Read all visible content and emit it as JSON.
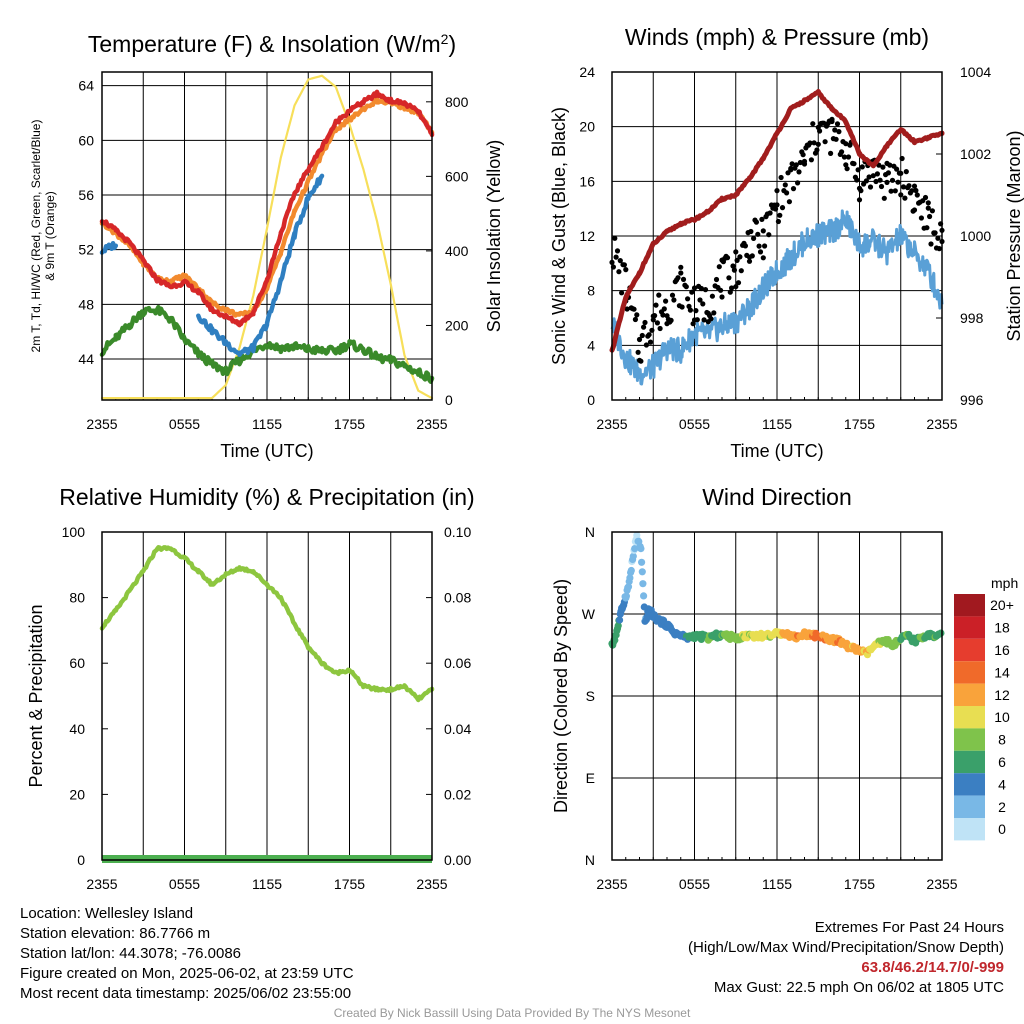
{
  "colors": {
    "temp": "#d62728",
    "dewpoint": "#3a8a2a",
    "heat_index": "#2f7fc1",
    "nine_m": "#f28a2e",
    "insolation": "#f7df5a",
    "wind": "#5aa0d6",
    "gust": "#000000",
    "pressure": "#a11d1d",
    "rh": "#8dc63f",
    "precip": "#4caf50"
  },
  "chart_data": [
    {
      "id": "temperature",
      "type": "line",
      "title": "Temperature (F) & Insolation (W/m",
      "title_superscript": "2",
      "title_suffix": ")",
      "ylabel_line1": "2m T, Td, HI/WC (Red, Green, Scarlet/Blue)",
      "ylabel_line2": "& 9m T (Orange)",
      "ylabel_right": "Solar Insolation (Yellow)",
      "xlabel": "Time (UTC)",
      "x_ticks": [
        "2355",
        "0555",
        "1155",
        "1755",
        "2355"
      ],
      "ylim": [
        41,
        65
      ],
      "y_ticks": [
        44,
        48,
        52,
        56,
        60,
        64
      ],
      "y2lim": [
        0,
        880
      ],
      "y2_ticks": [
        0,
        200,
        400,
        600,
        800
      ],
      "x_hours": [
        0,
        1,
        2,
        3,
        4,
        5,
        6,
        7,
        8,
        9,
        10,
        11,
        12,
        13,
        14,
        15,
        16,
        17,
        18,
        19,
        20,
        21,
        22,
        23,
        24
      ],
      "series": [
        {
          "key": "temp",
          "values": [
            54.2,
            53.4,
            52.5,
            51.2,
            49.8,
            49.3,
            49.6,
            48.9,
            47.6,
            47.1,
            46.6,
            47.4,
            49.8,
            53.2,
            56.1,
            57.9,
            59.5,
            61.3,
            62.2,
            62.8,
            63.4,
            62.9,
            62.7,
            62.1,
            60.4
          ]
        },
        {
          "key": "nine_m",
          "values": [
            54.0,
            53.2,
            52.3,
            51.0,
            49.9,
            49.7,
            50.1,
            49.2,
            48.1,
            47.6,
            47.2,
            47.5,
            49.2,
            51.8,
            54.8,
            57.0,
            59.0,
            60.8,
            61.5,
            62.3,
            62.9,
            62.7,
            62.4,
            62.0,
            60.6
          ]
        },
        {
          "key": "heat_index",
          "values": [
            51.9,
            52.4,
            null,
            null,
            null,
            null,
            null,
            47.2,
            46.1,
            45.2,
            44.4,
            44.8,
            46.6,
            49.7,
            53.1,
            55.8,
            57.4,
            null,
            null,
            null,
            null,
            null,
            null,
            null,
            null
          ]
        },
        {
          "key": "dewpoint",
          "values": [
            44.6,
            45.5,
            46.5,
            47.5,
            47.6,
            46.9,
            45.4,
            44.4,
            43.6,
            43.1,
            43.9,
            44.6,
            45.1,
            44.8,
            44.9,
            44.7,
            44.6,
            44.6,
            45.1,
            44.7,
            44.1,
            43.9,
            43.5,
            43.0,
            42.6
          ]
        },
        {
          "key": "insolation",
          "axis": "y2",
          "values": [
            5,
            5,
            5,
            5,
            5,
            5,
            5,
            5,
            5,
            40,
            140,
            280,
            460,
            650,
            790,
            860,
            870,
            840,
            740,
            620,
            480,
            310,
            120,
            25,
            5
          ]
        }
      ]
    },
    {
      "id": "winds",
      "type": "line",
      "title": "Winds (mph) & Pressure (mb)",
      "ylabel": "Sonic Wind & Gust (Blue, Black)",
      "ylabel_right": "Station Pressure (Maroon)",
      "xlabel": "Time (UTC)",
      "x_ticks": [
        "2355",
        "0555",
        "1155",
        "1755",
        "2355"
      ],
      "ylim": [
        0,
        24
      ],
      "y_ticks": [
        0,
        4,
        8,
        12,
        16,
        20,
        24
      ],
      "y2lim": [
        996,
        1004
      ],
      "y2_ticks": [
        996,
        998,
        1000,
        1002,
        1004
      ],
      "x_hours": [
        0,
        1,
        2,
        3,
        4,
        5,
        6,
        7,
        8,
        9,
        10,
        11,
        12,
        13,
        14,
        15,
        16,
        17,
        18,
        19,
        20,
        21,
        22,
        23,
        24
      ],
      "series": [
        {
          "key": "wind",
          "values": [
            5.6,
            3.1,
            1.9,
            2.4,
            3.8,
            3.6,
            4.9,
            4.8,
            5.4,
            5.7,
            6.8,
            8.1,
            9.4,
            10.4,
            11.6,
            12.1,
            12.3,
            13.2,
            11.3,
            11.6,
            10.8,
            12.0,
            10.7,
            9.5,
            7.0
          ]
        },
        {
          "key": "gust",
          "values": [
            11.2,
            8.3,
            3.9,
            6.1,
            6.8,
            8.4,
            6.8,
            7.1,
            8.8,
            9.6,
            11.6,
            11.8,
            14.4,
            15.9,
            17.5,
            19.6,
            19.4,
            18.4,
            16.1,
            16.9,
            15.9,
            16.5,
            14.9,
            13.1,
            11.6
          ]
        },
        {
          "key": "pressure",
          "axis": "y2",
          "values": [
            997.2,
            998.5,
            999.1,
            999.8,
            1000.1,
            1000.3,
            1000.4,
            1000.6,
            1000.9,
            1001.0,
            1001.4,
            1001.9,
            1002.5,
            1003.1,
            1003.3,
            1003.5,
            1003.1,
            1002.8,
            1002.0,
            1001.7,
            1002.2,
            1002.6,
            1002.3,
            1002.4,
            1002.5
          ]
        }
      ]
    },
    {
      "id": "humidity",
      "type": "line",
      "title": "Relative Humidity (%) & Precipitation (in)",
      "ylabel": "Percent & Precipitation",
      "x_ticks": [
        "2355",
        "0555",
        "1155",
        "1755",
        "2355"
      ],
      "ylim": [
        0,
        100
      ],
      "y_ticks": [
        0,
        20,
        40,
        60,
        80,
        100
      ],
      "y2lim": [
        0,
        0.1
      ],
      "y2_ticks": [
        "0.00",
        "0.02",
        "0.04",
        "0.06",
        "0.08",
        "0.10"
      ],
      "x_hours": [
        0,
        1,
        2,
        3,
        4,
        5,
        6,
        7,
        8,
        9,
        10,
        11,
        12,
        13,
        14,
        15,
        16,
        17,
        18,
        19,
        20,
        21,
        22,
        23,
        24
      ],
      "series": [
        {
          "key": "rh",
          "values": [
            71,
            76,
            82,
            88,
            95,
            95,
            92,
            88,
            84,
            87,
            89,
            88,
            84,
            80,
            72,
            65,
            60,
            57,
            58,
            53,
            52,
            52,
            53,
            49,
            52
          ]
        },
        {
          "key": "precip",
          "axis": "y2",
          "values": [
            0,
            0,
            0,
            0,
            0,
            0,
            0,
            0,
            0,
            0,
            0,
            0,
            0,
            0,
            0,
            0,
            0,
            0,
            0,
            0,
            0,
            0,
            0,
            0,
            0
          ]
        }
      ]
    },
    {
      "id": "wind_direction",
      "type": "scatter",
      "title": "Wind Direction",
      "ylabel": "Direction (Colored By Speed)",
      "x_ticks": [
        "2355",
        "0555",
        "1155",
        "1755",
        "2355"
      ],
      "y_ticks": [
        "N",
        "E",
        "S",
        "W",
        "N"
      ],
      "ylim": [
        0,
        360
      ],
      "colorbar_title": "mph",
      "colorbar_labels": [
        "20+",
        "18",
        "16",
        "14",
        "12",
        "10",
        "8",
        "6",
        "4",
        "2",
        "0"
      ],
      "colorbar_colors": [
        "#a1191f",
        "#cb2027",
        "#e63d2e",
        "#f06a2a",
        "#f9a33b",
        "#e8de52",
        "#7fc34b",
        "#3aa06a",
        "#3b7fc2",
        "#79b8e6",
        "#bfe3f6"
      ],
      "x_hours": [
        0,
        0.3,
        0.6,
        0.9,
        1.2,
        1.5,
        1.8,
        2.1,
        2.4,
        2.7,
        3.0,
        3.5,
        4.0,
        4.5,
        5.0,
        5.5,
        6.0,
        6.5,
        7.0,
        7.5,
        8.0,
        8.5,
        9.0,
        9.5,
        10.0,
        10.5,
        11.0,
        11.5,
        12.0,
        12.5,
        13.0,
        13.5,
        14.0,
        14.5,
        15.0,
        15.5,
        16.0,
        16.5,
        17.0,
        17.5,
        18.0,
        18.5,
        19.0,
        19.5,
        20.0,
        20.5,
        21.0,
        21.5,
        22.0,
        22.5,
        23.0,
        23.5,
        24.0
      ],
      "directions": [
        235,
        248,
        268,
        285,
        300,
        330,
        355,
        340,
        262,
        275,
        268,
        262,
        258,
        250,
        246,
        244,
        246,
        245,
        244,
        246,
        247,
        245,
        244,
        245,
        247,
        246,
        246,
        247,
        248,
        250,
        246,
        245,
        248,
        247,
        246,
        244,
        242,
        240,
        236,
        232,
        230,
        226,
        234,
        238,
        240,
        236,
        242,
        246,
        240,
        244,
        248,
        244,
        248
      ],
      "speeds": [
        6,
        7,
        5,
        3,
        2,
        1,
        1,
        2,
        3,
        4,
        5,
        4,
        3,
        4,
        4,
        5,
        6,
        5,
        7,
        6,
        7,
        8,
        8,
        9,
        9,
        10,
        10,
        9,
        10,
        11,
        12,
        13,
        12,
        13,
        14,
        13,
        12,
        13,
        12,
        11,
        12,
        11,
        10,
        9,
        8,
        8,
        7,
        7,
        6,
        7,
        6,
        7,
        6
      ]
    }
  ],
  "info_left": {
    "location": "Location: Wellesley Island",
    "elevation": "Station elevation: 86.7766 m",
    "latlon": "Station lat/lon: 44.3078; -76.0086",
    "created": "Figure created on Mon, 2025-06-02, at 23:59 UTC",
    "recent": "Most recent data timestamp: 2025/06/02 23:55:00"
  },
  "info_right": {
    "extremes_title": "Extremes For Past 24 Hours",
    "extremes_legend": "(High/Low/Max Wind/Precipitation/Snow Depth)",
    "extremes_values": "63.8/46.2/14.7/0/-999",
    "max_gust": "Max Gust: 22.5 mph On 06/02 at 1805 UTC"
  },
  "credit": "Created By Nick Bassill Using Data Provided By The NYS Mesonet"
}
